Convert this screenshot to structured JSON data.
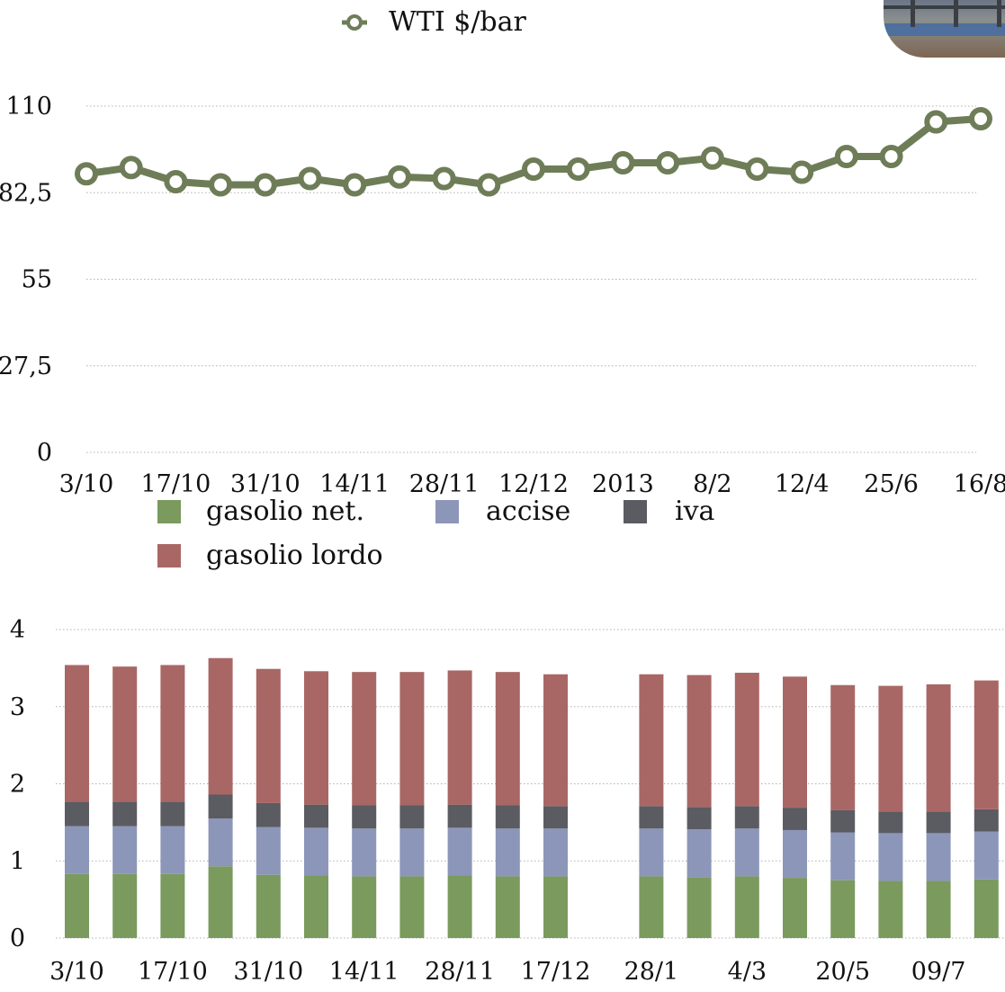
{
  "colors": {
    "line": "#6e7d58",
    "gasolio_net": "#7a9a5e",
    "accise": "#8c96b8",
    "iva": "#5b5b62",
    "gasolio_lordo": "#a86765",
    "grid": "#b0b0b0"
  },
  "chart_data": [
    {
      "type": "line",
      "legend": [
        "WTI $/bar"
      ],
      "series": [
        {
          "name": "WTI $/bar",
          "values": [
            88.5,
            90.5,
            86,
            85,
            85,
            87,
            85,
            87.5,
            87,
            85,
            90,
            90,
            92,
            92,
            93.5,
            90,
            89,
            94,
            94,
            105,
            106
          ]
        }
      ],
      "y_ticks": [
        "0",
        "27,5",
        "55",
        "82,5",
        "110"
      ],
      "ylim": [
        0,
        110
      ],
      "x_tick_labels": [
        "3/10",
        "17/10",
        "31/10",
        "14/11",
        "28/11",
        "12/12",
        "2013",
        "8/2",
        "12/4",
        "25/6",
        "16/8"
      ],
      "grid": true,
      "legend_position": "top"
    },
    {
      "type": "bar",
      "stacked": true,
      "legend": [
        "gasolio net.",
        "accise",
        "iva",
        "gasolio lordo"
      ],
      "series": [
        {
          "name": "gasolio net.",
          "values": [
            0.83,
            0.83,
            0.83,
            0.93,
            0.82,
            0.81,
            0.8,
            0.8,
            0.81,
            0.8,
            0.8,
            null,
            0.8,
            0.79,
            0.8,
            0.78,
            0.75,
            0.74,
            0.74,
            0.76
          ]
        },
        {
          "name": "accise",
          "values": [
            0.62,
            0.62,
            0.62,
            0.62,
            0.62,
            0.62,
            0.62,
            0.62,
            0.62,
            0.62,
            0.62,
            null,
            0.62,
            0.62,
            0.62,
            0.62,
            0.62,
            0.62,
            0.62,
            0.62
          ]
        },
        {
          "name": "iva",
          "values": [
            0.32,
            0.32,
            0.32,
            0.31,
            0.31,
            0.3,
            0.3,
            0.3,
            0.3,
            0.3,
            0.29,
            null,
            0.29,
            0.29,
            0.29,
            0.29,
            0.29,
            0.28,
            0.28,
            0.29
          ]
        },
        {
          "name": "gasolio lordo",
          "values": [
            1.77,
            1.75,
            1.77,
            1.77,
            1.74,
            1.73,
            1.73,
            1.73,
            1.74,
            1.73,
            1.71,
            null,
            1.71,
            1.71,
            1.73,
            1.7,
            1.62,
            1.63,
            1.65,
            1.67
          ]
        }
      ],
      "y_ticks": [
        "0",
        "1",
        "2",
        "3",
        "4"
      ],
      "ylim": [
        0,
        4
      ],
      "x_tick_labels": [
        "3/10",
        "17/10",
        "31/10",
        "14/11",
        "28/11",
        "17/12",
        "28/1",
        "4/3",
        "20/5",
        "09/7"
      ],
      "grid": true,
      "legend_position": "top"
    }
  ]
}
